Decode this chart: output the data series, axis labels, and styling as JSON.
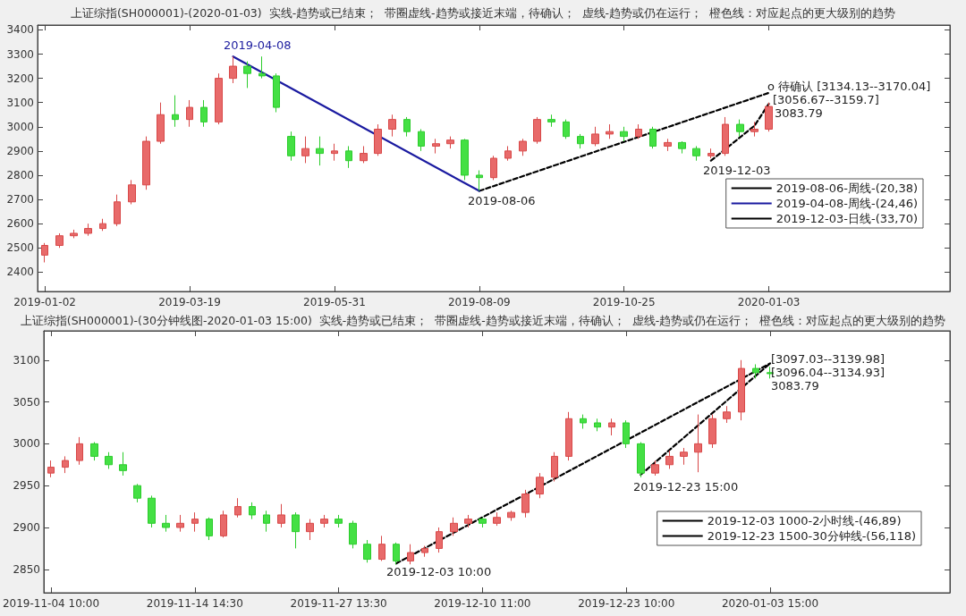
{
  "chart_data": [
    {
      "type": "candlestick",
      "title": "上证综指(SH000001)-(2020-01-03)  实线-趋势或已结束；  带圈虚线-趋势或接近末端，待确认；  虚线-趋势或仍在运行；  橙色线：对应起点的更大级别的趋势",
      "categories": [
        "2019-01-02",
        null,
        null,
        null,
        null,
        null,
        null,
        null,
        null,
        null,
        "2019-03-19",
        null,
        null,
        null,
        null,
        null,
        null,
        null,
        null,
        null,
        "2019-05-31",
        null,
        null,
        null,
        null,
        null,
        null,
        null,
        null,
        null,
        "2019-08-09",
        null,
        null,
        null,
        null,
        null,
        null,
        null,
        null,
        null,
        "2019-10-25",
        null,
        null,
        null,
        null,
        null,
        null,
        null,
        null,
        null,
        "2020-01-03",
        null,
        null,
        null,
        null,
        null,
        null,
        null,
        null,
        null,
        null,
        null,
        null
      ],
      "ylim": [
        2320,
        3420
      ],
      "yticks": [
        2400,
        2500,
        2600,
        2700,
        2800,
        2900,
        3000,
        3100,
        3200,
        3300,
        3400
      ],
      "grid": false,
      "legend": "right",
      "marker": "none",
      "series": [
        {
          "ohlc": [
            [
              2470,
              2520,
              2440,
              2510
            ],
            [
              2510,
              2560,
              2500,
              2550
            ],
            [
              2550,
              2575,
              2540,
              2560
            ],
            [
              2560,
              2600,
              2550,
              2580
            ],
            [
              2580,
              2620,
              2570,
              2600
            ],
            [
              2600,
              2720,
              2590,
              2690
            ],
            [
              2690,
              2780,
              2680,
              2760
            ],
            [
              2760,
              2960,
              2740,
              2940
            ],
            [
              2940,
              3100,
              2930,
              3050
            ],
            [
              3050,
              3130,
              3000,
              3030
            ],
            [
              3030,
              3110,
              3000,
              3080
            ],
            [
              3080,
              3110,
              3000,
              3020
            ],
            [
              3020,
              3220,
              3010,
              3200
            ],
            [
              3200,
              3290,
              3180,
              3250
            ],
            [
              3250,
              3270,
              3160,
              3220
            ],
            [
              3220,
              3290,
              3200,
              3210
            ],
            [
              3210,
              3220,
              3060,
              3080
            ],
            [
              2960,
              2980,
              2860,
              2880
            ],
            [
              2880,
              2960,
              2850,
              2910
            ],
            [
              2910,
              2960,
              2840,
              2890
            ],
            [
              2890,
              2930,
              2860,
              2900
            ],
            [
              2900,
              2920,
              2830,
              2860
            ],
            [
              2860,
              2920,
              2850,
              2890
            ],
            [
              2890,
              3010,
              2880,
              2990
            ],
            [
              2990,
              3050,
              2960,
              3030
            ],
            [
              3030,
              3040,
              2960,
              2980
            ],
            [
              2980,
              2990,
              2900,
              2920
            ],
            [
              2920,
              2950,
              2890,
              2930
            ],
            [
              2930,
              2960,
              2910,
              2945
            ],
            [
              2945,
              2950,
              2780,
              2800
            ],
            [
              2800,
              2820,
              2735,
              2790
            ],
            [
              2790,
              2880,
              2780,
              2870
            ],
            [
              2870,
              2920,
              2860,
              2900
            ],
            [
              2900,
              2950,
              2880,
              2940
            ],
            [
              2940,
              3040,
              2930,
              3030
            ],
            [
              3030,
              3050,
              3000,
              3020
            ],
            [
              3020,
              3030,
              2950,
              2960
            ],
            [
              2960,
              2970,
              2910,
              2930
            ],
            [
              2930,
              3000,
              2920,
              2970
            ],
            [
              2970,
              3010,
              2950,
              2980
            ],
            [
              2980,
              3000,
              2940,
              2960
            ],
            [
              2960,
              3010,
              2950,
              2990
            ],
            [
              2990,
              3000,
              2910,
              2920
            ],
            [
              2920,
              2950,
              2900,
              2935
            ],
            [
              2935,
              2940,
              2890,
              2910
            ],
            [
              2910,
              2920,
              2860,
              2880
            ],
            [
              2880,
              2910,
              2870,
              2890
            ],
            [
              2890,
              3040,
              2880,
              3010
            ],
            [
              3010,
              3030,
              2960,
              2980
            ],
            [
              2980,
              3020,
              2960,
              2990
            ],
            [
              2990,
              3100,
              2980,
              3083.79
            ],
            null,
            null,
            null,
            null,
            null,
            null,
            null,
            null,
            null,
            null,
            null,
            null
          ]
        },
        {
          "type": "line",
          "name": "2019-08-06-周线-(20,38)",
          "color": "#000000",
          "line_style": "dashed",
          "values": [
            null,
            null,
            null,
            null,
            null,
            null,
            null,
            null,
            null,
            null,
            null,
            null,
            null,
            null,
            null,
            null,
            null,
            null,
            null,
            null,
            null,
            null,
            null,
            null,
            null,
            null,
            null,
            null,
            null,
            null,
            2735,
            null,
            null,
            null,
            null,
            null,
            null,
            null,
            null,
            null,
            null,
            null,
            null,
            null,
            null,
            null,
            null,
            null,
            null,
            null,
            3140,
            null,
            null,
            null,
            null,
            null,
            null,
            null,
            null,
            null,
            null,
            null,
            null
          ]
        },
        {
          "type": "line",
          "name": "2019-04-08-周线-(24,46)",
          "color": "#1a1aa0",
          "line_style": "solid",
          "values": [
            null,
            null,
            null,
            null,
            null,
            null,
            null,
            null,
            null,
            null,
            null,
            null,
            null,
            3290,
            null,
            null,
            null,
            null,
            null,
            null,
            null,
            null,
            null,
            null,
            null,
            null,
            null,
            null,
            null,
            null,
            2735,
            null,
            null,
            null,
            null,
            null,
            null,
            null,
            null,
            null,
            null,
            null,
            null,
            null,
            null,
            null,
            null,
            null,
            null,
            null,
            null,
            null,
            null,
            null,
            null,
            null,
            null,
            null,
            null,
            null,
            null,
            null,
            null
          ]
        },
        {
          "type": "line",
          "name": "2019-12-03-日线-(33,70)",
          "color": "#000000",
          "line_style": "dashed",
          "values": [
            null,
            null,
            null,
            null,
            null,
            null,
            null,
            null,
            null,
            null,
            null,
            null,
            null,
            null,
            null,
            null,
            null,
            null,
            null,
            null,
            null,
            null,
            null,
            null,
            null,
            null,
            null,
            null,
            null,
            null,
            null,
            null,
            null,
            null,
            null,
            null,
            null,
            null,
            null,
            null,
            null,
            null,
            null,
            null,
            null,
            null,
            2860,
            null,
            null,
            3004,
            3095,
            null,
            null,
            null,
            null,
            null,
            null,
            null,
            null,
            null,
            null,
            null,
            null
          ]
        }
      ],
      "annotations": [
        "2019-04-08",
        "2019-08-06",
        "2019-12-03",
        "o 待确认 [3134.13--3170.04]",
        "[3056.67--3159.7]",
        "3083.79"
      ]
    },
    {
      "type": "candlestick",
      "title": "上证综指(SH000001)-(30分钟线图-2020-01-03 15:00)  实线-趋势或已结束；  带圈虚线-趋势或接近末端，待确认；  虚线-趋势或仍在运行；  橙色线：对应起点的更大级别的趋势",
      "categories": [
        "2019-11-04 10:00",
        null,
        null,
        null,
        null,
        null,
        null,
        null,
        null,
        null,
        "2019-11-14 14:30",
        null,
        null,
        null,
        null,
        null,
        null,
        null,
        null,
        null,
        "2019-11-27 13:30",
        null,
        null,
        null,
        null,
        null,
        null,
        null,
        null,
        null,
        "2019-12-10 11:00",
        null,
        null,
        null,
        null,
        null,
        null,
        null,
        null,
        null,
        "2019-12-23 10:00",
        null,
        null,
        null,
        null,
        null,
        null,
        null,
        null,
        null,
        "2020-01-03 15:00",
        null,
        null,
        null,
        null,
        null,
        null,
        null,
        null,
        null,
        null,
        null,
        null
      ],
      "ylim": [
        2822,
        3135
      ],
      "yticks": [
        2850,
        2900,
        2950,
        3000,
        3050,
        3100
      ],
      "grid": false,
      "legend": "bottom right",
      "marker": "none",
      "series": [
        {
          "ohlc": [
            [
              2965,
              2980,
              2960,
              2972
            ],
            [
              2972,
              2985,
              2965,
              2980
            ],
            [
              2980,
              3008,
              2975,
              3000
            ],
            [
              3000,
              3002,
              2980,
              2985
            ],
            [
              2985,
              2990,
              2970,
              2975
            ],
            [
              2975,
              2990,
              2962,
              2968
            ],
            [
              2950,
              2952,
              2930,
              2935
            ],
            [
              2935,
              2938,
              2900,
              2905
            ],
            [
              2905,
              2915,
              2895,
              2900
            ],
            [
              2900,
              2915,
              2895,
              2905
            ],
            [
              2905,
              2918,
              2895,
              2910
            ],
            [
              2910,
              2912,
              2885,
              2890
            ],
            [
              2890,
              2920,
              2888,
              2915
            ],
            [
              2915,
              2935,
              2912,
              2925
            ],
            [
              2925,
              2930,
              2910,
              2915
            ],
            [
              2915,
              2920,
              2895,
              2905
            ],
            [
              2905,
              2928,
              2900,
              2915
            ],
            [
              2915,
              2918,
              2875,
              2895
            ],
            [
              2895,
              2910,
              2885,
              2905
            ],
            [
              2905,
              2915,
              2900,
              2910
            ],
            [
              2910,
              2915,
              2900,
              2905
            ],
            [
              2905,
              2908,
              2875,
              2880
            ],
            [
              2880,
              2885,
              2858,
              2862
            ],
            [
              2862,
              2890,
              2860,
              2880
            ],
            [
              2880,
              2882,
              2856,
              2860
            ],
            [
              2860,
              2880,
              2856,
              2870
            ],
            [
              2870,
              2878,
              2865,
              2875
            ],
            [
              2875,
              2900,
              2870,
              2895
            ],
            [
              2895,
              2912,
              2890,
              2905
            ],
            [
              2905,
              2915,
              2900,
              2910
            ],
            [
              2910,
              2912,
              2900,
              2905
            ],
            [
              2905,
              2918,
              2902,
              2912
            ],
            [
              2912,
              2920,
              2908,
              2918
            ],
            [
              2918,
              2945,
              2912,
              2940
            ],
            [
              2940,
              2965,
              2935,
              2960
            ],
            [
              2960,
              2990,
              2955,
              2985
            ],
            [
              2985,
              3038,
              2980,
              3030
            ],
            [
              3030,
              3035,
              3018,
              3025
            ],
            [
              3025,
              3030,
              3015,
              3020
            ],
            [
              3020,
              3030,
              3010,
              3025
            ],
            [
              3025,
              3028,
              2995,
              3000
            ],
            [
              3000,
              3002,
              2960,
              2965
            ],
            [
              2965,
              2980,
              2962,
              2975
            ],
            [
              2975,
              2992,
              2970,
              2985
            ],
            [
              2985,
              2995,
              2975,
              2990
            ],
            [
              2990,
              3035,
              2966,
              3000
            ],
            [
              3000,
              3035,
              2995,
              3030
            ],
            [
              3030,
              3045,
              3025,
              3038
            ],
            [
              3038,
              3100,
              3028,
              3090
            ],
            [
              3090,
              3095,
              3078,
              3085
            ],
            [
              3085,
              3092,
              3078,
              3083.79
            ],
            null,
            null,
            null,
            null,
            null,
            null,
            null,
            null,
            null,
            null,
            null,
            null
          ]
        },
        {
          "type": "line",
          "name": "2019-12-03 1000-2小时线-(46,89)",
          "color": "#000000",
          "line_style": "dashed",
          "values": [
            null,
            null,
            null,
            null,
            null,
            null,
            null,
            null,
            null,
            null,
            null,
            null,
            null,
            null,
            null,
            null,
            null,
            null,
            null,
            null,
            null,
            null,
            null,
            null,
            2857,
            null,
            null,
            null,
            null,
            null,
            null,
            null,
            null,
            null,
            null,
            null,
            null,
            null,
            null,
            null,
            null,
            null,
            null,
            null,
            null,
            null,
            null,
            null,
            null,
            null,
            3096,
            null,
            null,
            null,
            null,
            null,
            null,
            null,
            null,
            null,
            null,
            null,
            null
          ]
        },
        {
          "type": "line",
          "name": "2019-12-23 1500-30分钟线-(56,118)",
          "color": "#000000",
          "line_style": "dashed",
          "values": [
            null,
            null,
            null,
            null,
            null,
            null,
            null,
            null,
            null,
            null,
            null,
            null,
            null,
            null,
            null,
            null,
            null,
            null,
            null,
            null,
            null,
            null,
            null,
            null,
            null,
            null,
            null,
            null,
            null,
            null,
            null,
            null,
            null,
            null,
            null,
            null,
            null,
            null,
            null,
            null,
            null,
            2963,
            null,
            null,
            null,
            null,
            null,
            null,
            null,
            null,
            3096,
            null,
            null,
            null,
            null,
            null,
            null,
            null,
            null,
            null,
            null,
            null,
            null
          ]
        }
      ],
      "annotations": [
        "2019-12-03 10:00",
        "2019-12-23 15:00",
        "[3097.03--3139.98]",
        "[3096.04--3134.93]",
        "3083.79"
      ]
    }
  ]
}
